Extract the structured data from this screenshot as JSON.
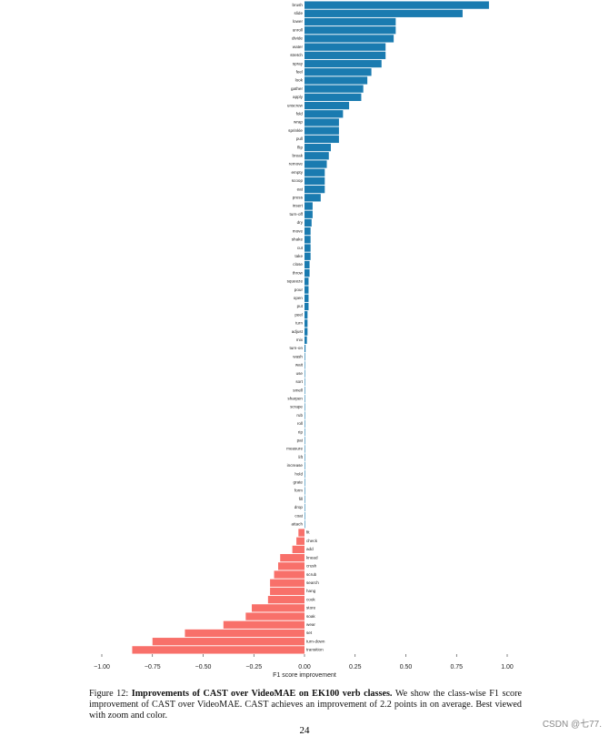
{
  "chart_data": {
    "type": "barh",
    "categories": [
      "brush",
      "slide",
      "lower",
      "unroll",
      "divide",
      "water",
      "stretch",
      "spray",
      "feel",
      "look",
      "gather",
      "apply",
      "unscrew",
      "fold",
      "wrap",
      "sprinkle",
      "pull",
      "flip",
      "break",
      "remove",
      "empty",
      "scoop",
      "eat",
      "press",
      "insert",
      "turn-off",
      "dry",
      "move",
      "shake",
      "cut",
      "take",
      "close",
      "throw",
      "squeeze",
      "pour",
      "open",
      "put",
      "peel",
      "turn",
      "adjust",
      "mix",
      "turn-on",
      "wash",
      "wait",
      "use",
      "sort",
      "smell",
      "sharpen",
      "scrape",
      "rub",
      "roll",
      "rip",
      "pat",
      "measure",
      "lift",
      "increase",
      "hold",
      "grate",
      "form",
      "fill",
      "drop",
      "coat",
      "attach",
      "fit",
      "check",
      "add",
      "knead",
      "crush",
      "scrub",
      "search",
      "hang",
      "cook",
      "store",
      "soak",
      "wear",
      "set",
      "turn-down",
      "transition"
    ],
    "values": [
      0.91,
      0.78,
      0.45,
      0.45,
      0.44,
      0.4,
      0.4,
      0.38,
      0.33,
      0.31,
      0.29,
      0.28,
      0.22,
      0.19,
      0.17,
      0.17,
      0.17,
      0.13,
      0.12,
      0.11,
      0.1,
      0.1,
      0.1,
      0.08,
      0.04,
      0.04,
      0.035,
      0.03,
      0.03,
      0.03,
      0.03,
      0.025,
      0.025,
      0.02,
      0.02,
      0.02,
      0.02,
      0.015,
      0.015,
      0.015,
      0.012,
      0.005,
      0.003,
      0.002,
      0.001,
      0.001,
      0,
      0,
      0,
      0,
      0,
      0,
      0,
      0,
      0,
      0,
      0,
      0,
      0,
      0,
      0,
      0,
      0,
      -0.03,
      -0.04,
      -0.06,
      -0.12,
      -0.13,
      -0.15,
      -0.17,
      -0.17,
      -0.18,
      -0.26,
      -0.29,
      -0.4,
      -0.59,
      -0.75,
      -0.85
    ],
    "positive_color": "#1a7bb0",
    "negative_color": "#f8706a",
    "xlabel": "F1 score improvement",
    "xlim": [
      -1.0,
      1.0
    ],
    "xticks": [
      {
        "value": -1.0,
        "label": "−1.00"
      },
      {
        "value": -0.75,
        "label": "−0.75"
      },
      {
        "value": -0.5,
        "label": "−0.50"
      },
      {
        "value": -0.25,
        "label": "−0.25"
      },
      {
        "value": 0,
        "label": "0.00"
      },
      {
        "value": 0.25,
        "label": "0.25"
      },
      {
        "value": 0.5,
        "label": "0.50"
      },
      {
        "value": 0.75,
        "label": "0.75"
      },
      {
        "value": 1.0,
        "label": "1.00"
      }
    ]
  },
  "caption": {
    "number": "Figure 12:",
    "bold": "Improvements of CAST over VideoMAE on EK100 verb classes.",
    "text": "We show the class-wise F1 score improvement of CAST over VideoMAE. CAST achieves an improvement of 2.2 points in on average. Best viewed with zoom and color."
  },
  "page_number": "24",
  "watermark": "CSDN @七77."
}
